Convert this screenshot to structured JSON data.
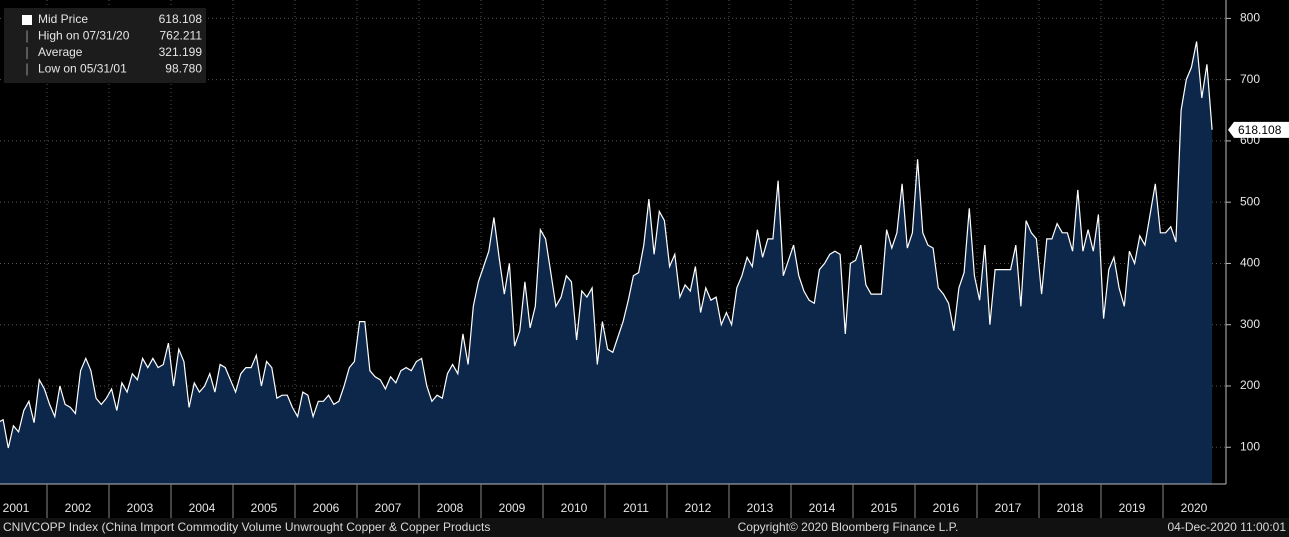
{
  "chart_data": {
    "type": "area",
    "color": "#0c2749",
    "line_color": "#ffffff",
    "x": [
      "2001-03",
      "2001-04",
      "2001-05",
      "2001-06",
      "2001-07",
      "2001-08",
      "2001-09",
      "2001-10",
      "2001-11",
      "2001-12",
      "2002-01",
      "2002-02",
      "2002-03",
      "2002-04",
      "2002-05",
      "2002-06",
      "2002-07",
      "2002-08",
      "2002-09",
      "2002-10",
      "2002-11",
      "2002-12",
      "2003-01",
      "2003-02",
      "2003-03",
      "2003-04",
      "2003-05",
      "2003-06",
      "2003-07",
      "2003-08",
      "2003-09",
      "2003-10",
      "2003-11",
      "2003-12",
      "2004-01",
      "2004-02",
      "2004-03",
      "2004-04",
      "2004-05",
      "2004-06",
      "2004-07",
      "2004-08",
      "2004-09",
      "2004-10",
      "2004-11",
      "2004-12",
      "2005-01",
      "2005-02",
      "2005-03",
      "2005-04",
      "2005-05",
      "2005-06",
      "2005-07",
      "2005-08",
      "2005-09",
      "2005-10",
      "2005-11",
      "2005-12",
      "2006-01",
      "2006-02",
      "2006-03",
      "2006-04",
      "2006-05",
      "2006-06",
      "2006-07",
      "2006-08",
      "2006-09",
      "2006-10",
      "2006-11",
      "2006-12",
      "2007-01",
      "2007-02",
      "2007-03",
      "2007-04",
      "2007-05",
      "2007-06",
      "2007-07",
      "2007-08",
      "2007-09",
      "2007-10",
      "2007-11",
      "2007-12",
      "2008-01",
      "2008-02",
      "2008-03",
      "2008-04",
      "2008-05",
      "2008-06",
      "2008-07",
      "2008-08",
      "2008-09",
      "2008-10",
      "2008-11",
      "2008-12",
      "2009-01",
      "2009-02",
      "2009-03",
      "2009-04",
      "2009-05",
      "2009-06",
      "2009-07",
      "2009-08",
      "2009-09",
      "2009-10",
      "2009-11",
      "2009-12",
      "2010-01",
      "2010-02",
      "2010-03",
      "2010-04",
      "2010-05",
      "2010-06",
      "2010-07",
      "2010-08",
      "2010-09",
      "2010-10",
      "2010-11",
      "2010-12",
      "2011-01",
      "2011-02",
      "2011-03",
      "2011-04",
      "2011-05",
      "2011-06",
      "2011-07",
      "2011-08",
      "2011-09",
      "2011-10",
      "2011-11",
      "2011-12",
      "2012-01",
      "2012-02",
      "2012-03",
      "2012-04",
      "2012-05",
      "2012-06",
      "2012-07",
      "2012-08",
      "2012-09",
      "2012-10",
      "2012-11",
      "2012-12",
      "2013-01",
      "2013-02",
      "2013-03",
      "2013-04",
      "2013-05",
      "2013-06",
      "2013-07",
      "2013-08",
      "2013-09",
      "2013-10",
      "2013-11",
      "2013-12",
      "2014-01",
      "2014-02",
      "2014-03",
      "2014-04",
      "2014-05",
      "2014-06",
      "2014-07",
      "2014-08",
      "2014-09",
      "2014-10",
      "2014-11",
      "2014-12",
      "2015-01",
      "2015-02",
      "2015-03",
      "2015-04",
      "2015-05",
      "2015-06",
      "2015-07",
      "2015-08",
      "2015-09",
      "2015-10",
      "2015-11",
      "2015-12",
      "2016-01",
      "2016-02",
      "2016-03",
      "2016-04",
      "2016-05",
      "2016-06",
      "2016-07",
      "2016-08",
      "2016-09",
      "2016-10",
      "2016-11",
      "2016-12",
      "2017-01",
      "2017-02",
      "2017-03",
      "2017-04",
      "2017-05",
      "2017-06",
      "2017-07",
      "2017-08",
      "2017-09",
      "2017-10",
      "2017-11",
      "2017-12",
      "2018-01",
      "2018-02",
      "2018-03",
      "2018-04",
      "2018-05",
      "2018-06",
      "2018-07",
      "2018-08",
      "2018-09",
      "2018-10",
      "2018-11",
      "2018-12",
      "2019-01",
      "2019-02",
      "2019-03",
      "2019-04",
      "2019-05",
      "2019-06",
      "2019-07",
      "2019-08",
      "2019-09",
      "2019-10",
      "2019-11",
      "2019-12",
      "2020-01",
      "2020-02",
      "2020-03",
      "2020-04",
      "2020-05",
      "2020-06",
      "2020-07",
      "2020-08",
      "2020-09",
      "2020-10"
    ],
    "series": [
      {
        "name": "Mid Price",
        "values": [
          140,
          145,
          98.78,
          135,
          125,
          160,
          175,
          140,
          210,
          195,
          170,
          150,
          200,
          170,
          165,
          155,
          225,
          245,
          225,
          180,
          170,
          180,
          195,
          160,
          205,
          190,
          220,
          210,
          245,
          230,
          245,
          230,
          235,
          270,
          200,
          260,
          240,
          165,
          205,
          190,
          200,
          220,
          190,
          235,
          230,
          210,
          190,
          220,
          230,
          230,
          250,
          200,
          240,
          230,
          180,
          185,
          185,
          165,
          150,
          190,
          185,
          150,
          175,
          175,
          185,
          170,
          175,
          200,
          230,
          240,
          305,
          305,
          225,
          215,
          210,
          195,
          215,
          205,
          225,
          230,
          225,
          240,
          245,
          200,
          175,
          185,
          180,
          220,
          235,
          220,
          285,
          235,
          330,
          370,
          395,
          420,
          475,
          410,
          350,
          400,
          265,
          290,
          370,
          295,
          330,
          455,
          440,
          385,
          330,
          345,
          380,
          370,
          275,
          355,
          345,
          360,
          235,
          305,
          260,
          255,
          280,
          305,
          340,
          380,
          385,
          430,
          505,
          415,
          485,
          470,
          395,
          415,
          345,
          365,
          355,
          395,
          320,
          360,
          340,
          345,
          300,
          320,
          300,
          360,
          380,
          410,
          395,
          455,
          410,
          440,
          440,
          535,
          380,
          405,
          430,
          380,
          355,
          340,
          335,
          390,
          400,
          415,
          420,
          415,
          285,
          400,
          405,
          430,
          365,
          350,
          350,
          350,
          455,
          425,
          450,
          530,
          425,
          450,
          570,
          450,
          430,
          425,
          360,
          350,
          335,
          290,
          360,
          385,
          490,
          380,
          340,
          430,
          300,
          390,
          390,
          390,
          390,
          430,
          330,
          470,
          450,
          440,
          350,
          440,
          440,
          465,
          450,
          450,
          420,
          520,
          420,
          455,
          420,
          480,
          310,
          390,
          410,
          360,
          330,
          420,
          400,
          445,
          430,
          480,
          530,
          450,
          450,
          460,
          435,
          650,
          700,
          720,
          762.211,
          670,
          725,
          618.108
        ]
      }
    ],
    "legend_stats": [
      {
        "label": "Mid Price",
        "value": 618.108
      },
      {
        "label": "High on 07/31/20",
        "value": 762.211
      },
      {
        "label": "Average",
        "value": 321.199
      },
      {
        "label": "Low on 05/31/01",
        "value": 98.78,
        "value_label": "98.780"
      }
    ],
    "ylim": [
      40,
      830
    ],
    "yticks": [
      100,
      200,
      300,
      400,
      500,
      600,
      700,
      800
    ],
    "xticks": [
      2001,
      2002,
      2003,
      2004,
      2005,
      2006,
      2007,
      2008,
      2009,
      2010,
      2011,
      2012,
      2013,
      2014,
      2015,
      2016,
      2017,
      2018,
      2019,
      2020
    ],
    "grid": true
  },
  "footer": {
    "left": "CNIVCOPP Index (China Import Commodity Volume Unwrought Copper & Copper Products",
    "center": "Copyright© 2020 Bloomberg Finance L.P.",
    "right": "04-Dec-2020 11:00:01"
  }
}
